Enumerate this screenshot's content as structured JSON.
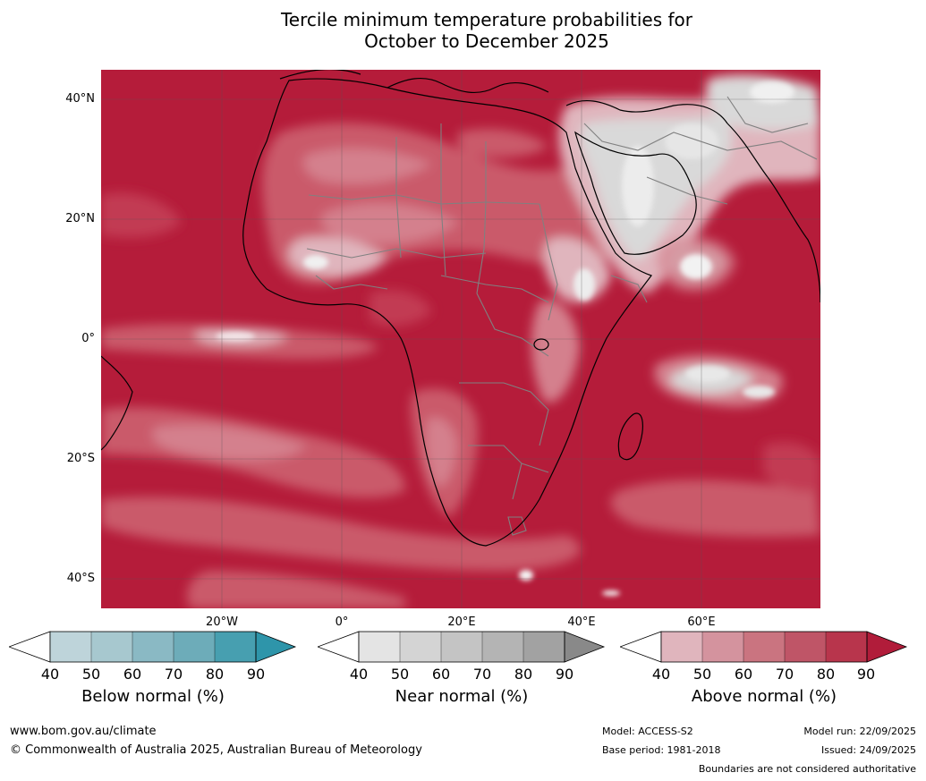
{
  "title": {
    "line1": "Tercile minimum temperature probabilities for",
    "line2": "October to December 2025"
  },
  "axes": {
    "lat_ticks": [
      "40°N",
      "20°N",
      "0°",
      "20°S",
      "40°S"
    ],
    "lon_ticks": [
      "20°W",
      "0°",
      "20°E",
      "40°E",
      "60°E"
    ]
  },
  "legends": [
    {
      "title": "Below normal (%)",
      "ticks": [
        "40",
        "50",
        "60",
        "70",
        "80",
        "90"
      ],
      "colors": [
        "#ffffff",
        "#bed4da",
        "#a7c8cf",
        "#8ab9c4",
        "#6dacb9",
        "#479fb0",
        "#2e95aa"
      ]
    },
    {
      "title": "Near normal (%)",
      "ticks": [
        "40",
        "50",
        "60",
        "70",
        "80",
        "90"
      ],
      "colors": [
        "#ffffff",
        "#e4e4e4",
        "#d4d4d4",
        "#c4c4c4",
        "#b4b4b4",
        "#a2a2a2",
        "#898989"
      ]
    },
    {
      "title": "Above normal (%)",
      "ticks": [
        "40",
        "50",
        "60",
        "70",
        "80",
        "90"
      ],
      "colors": [
        "#ffffff",
        "#e0b5bd",
        "#d4939e",
        "#ca7480",
        "#bf5567",
        "#b8354c",
        "#b11c3a"
      ]
    }
  ],
  "colors": {
    "above_90": "#b51c3a",
    "above_80": "#c23a52",
    "above_70": "#ca5a6b",
    "above_60": "#d4808d",
    "above_50": "#e0b5bd",
    "near": "#d9d9d9",
    "coast": "#000000",
    "borders": "#808080"
  },
  "footer": {
    "url": "www.bom.gov.au/climate",
    "copyright": "© Commonwealth of Australia 2025, Australian Bureau of Meteorology",
    "model": "Model: ACCESS-S2",
    "base_period": "Base period: 1981-2018",
    "model_run": "Model run: 22/09/2025",
    "issued": "Issued: 24/09/2025",
    "disclaimer": "Boundaries are not considered authoritative"
  }
}
